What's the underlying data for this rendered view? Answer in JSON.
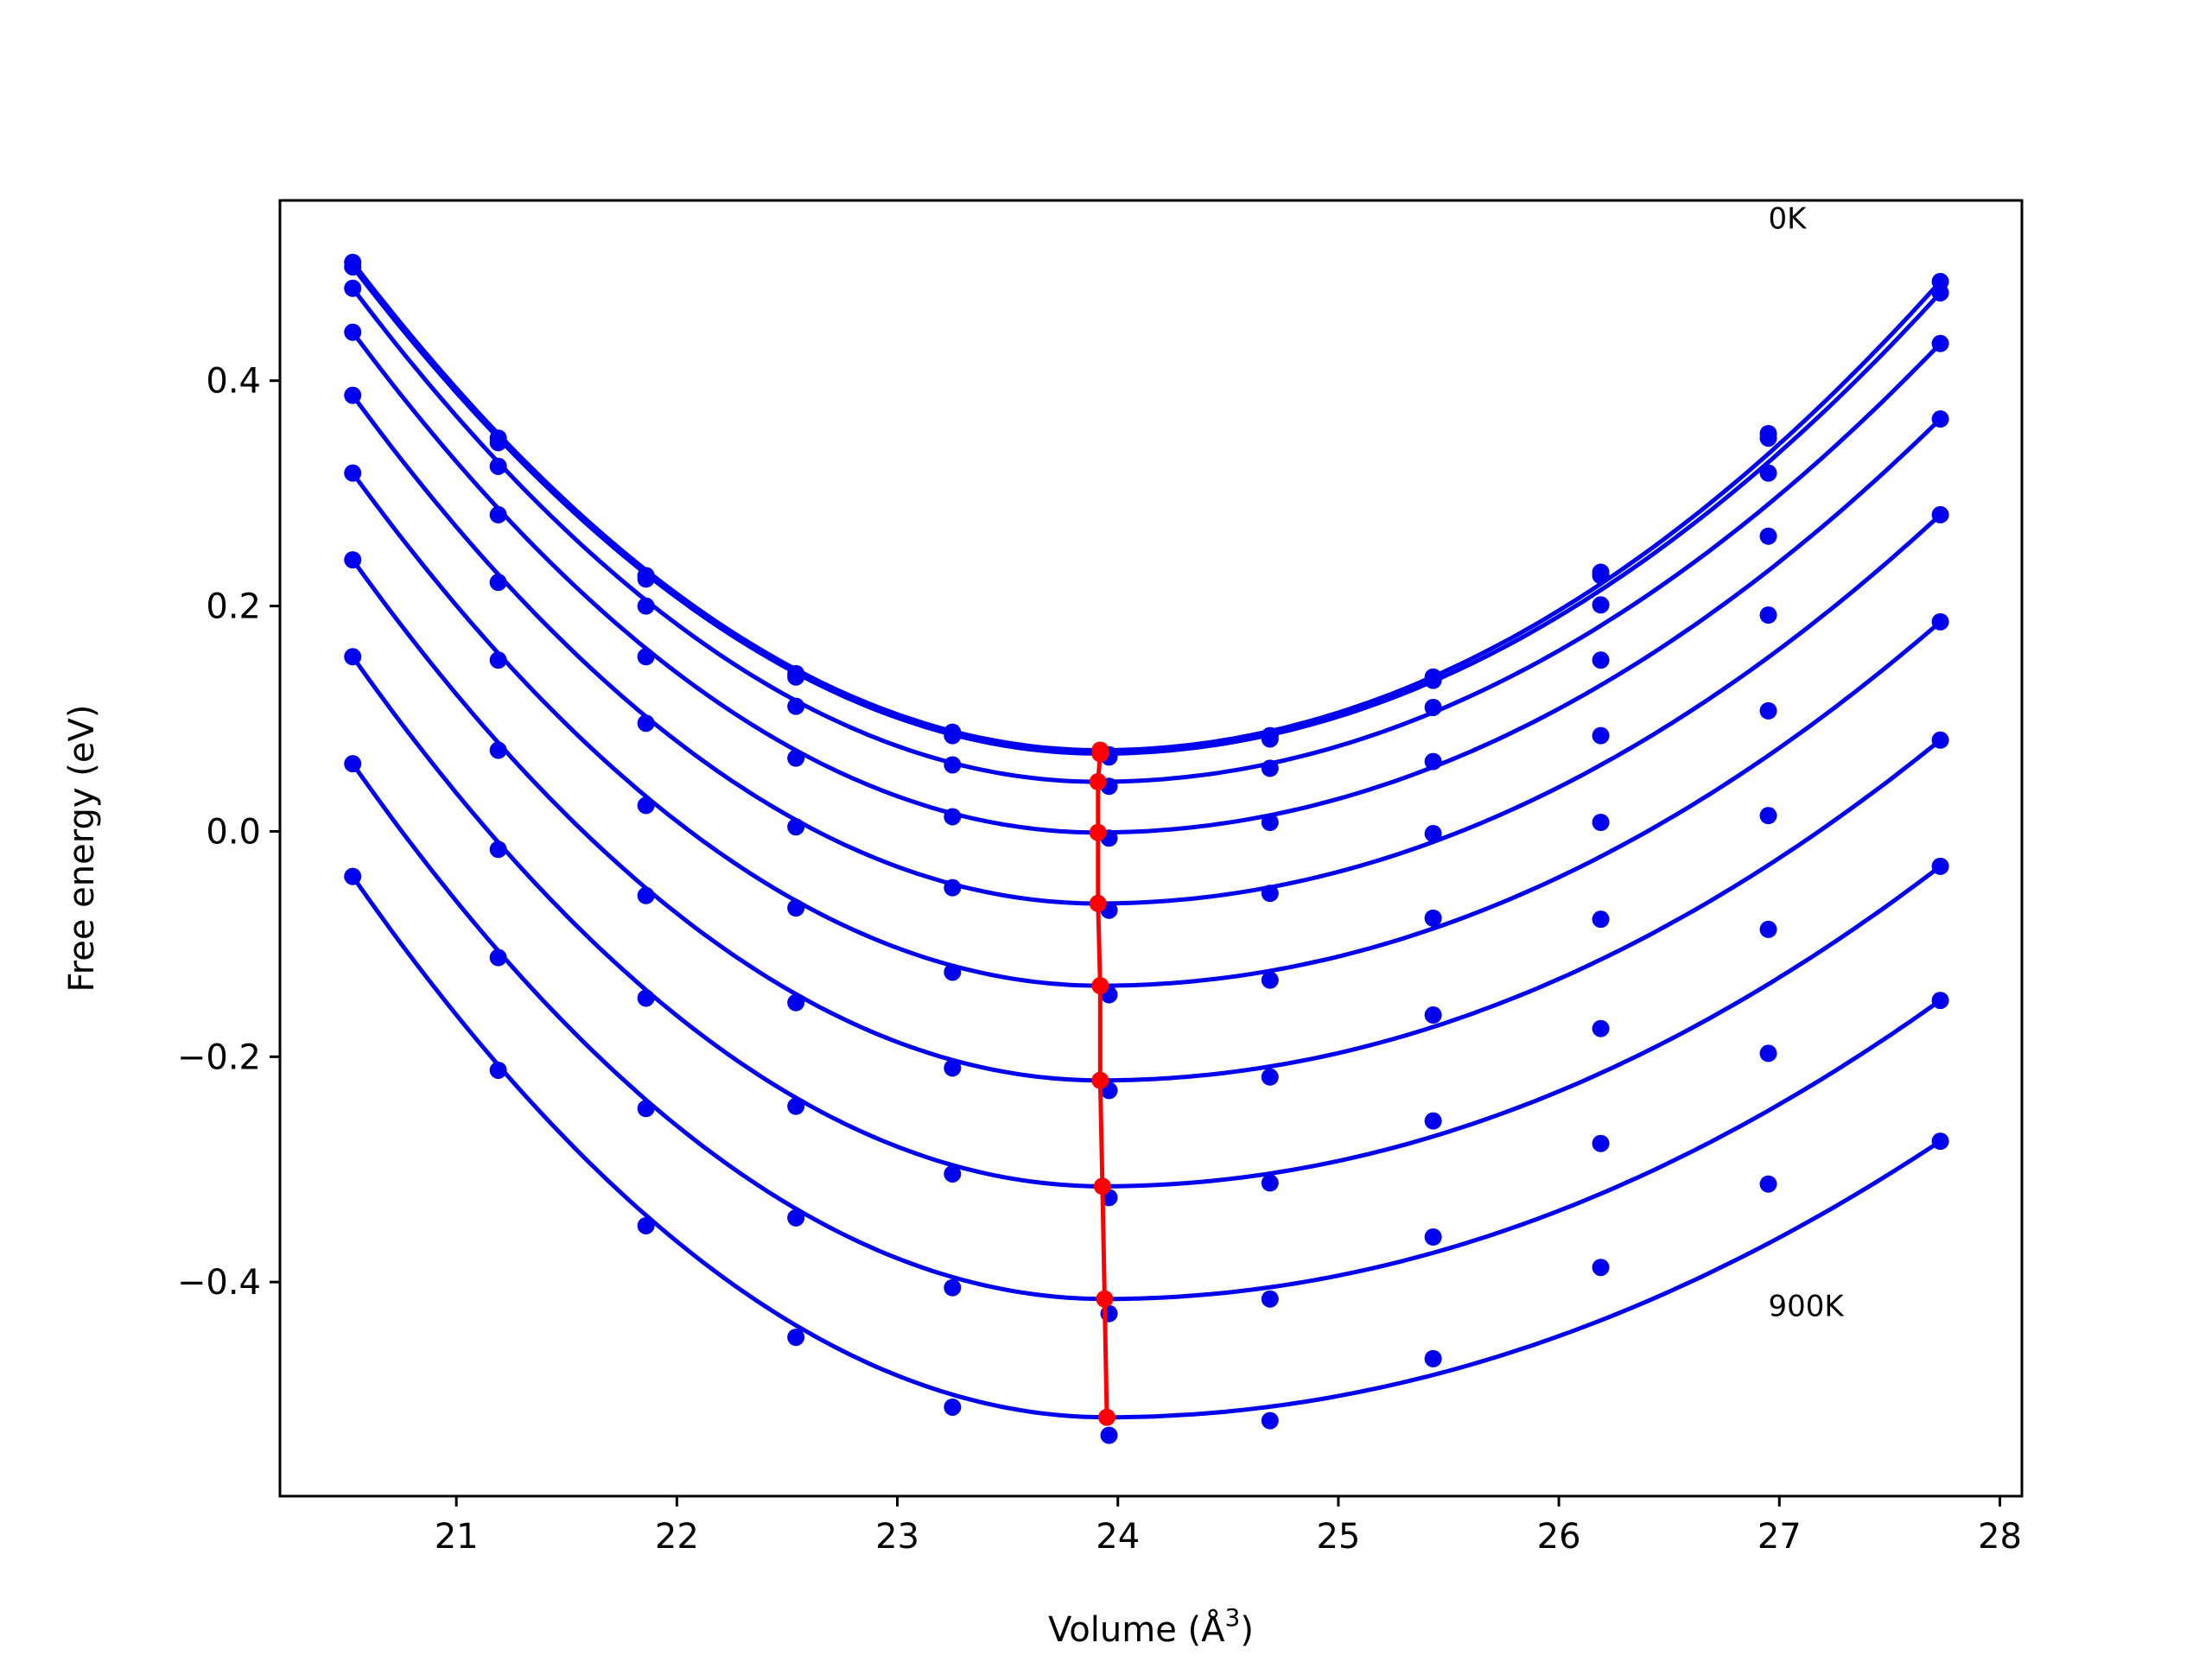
{
  "chart_data": {
    "type": "line",
    "title": "",
    "xlabel": "Volume (Å",
    "xlabel_superscript": "3",
    "xlabel_suffix": ")",
    "ylabel": "Free energy (eV)",
    "xlim": [
      20.2,
      28.1
    ],
    "ylim": [
      -0.59,
      0.56
    ],
    "x_ticks": [
      21,
      22,
      23,
      24,
      25,
      26,
      27,
      28
    ],
    "y_ticks": [
      -0.4,
      -0.2,
      0.0,
      0.2,
      0.4
    ],
    "y_tick_labels": [
      "−0.4",
      "−0.2",
      "0.0",
      "0.2",
      "0.4"
    ],
    "x_tick_labels": [
      "21",
      "22",
      "23",
      "24",
      "25",
      "26",
      "27",
      "28"
    ],
    "annotations": [
      {
        "text": "0K",
        "x": 26.95,
        "y": 0.535
      },
      {
        "text": "900K",
        "x": 26.95,
        "y": -0.43
      }
    ],
    "volumes": [
      20.53,
      21.19,
      21.86,
      22.54,
      23.25,
      23.96,
      24.69,
      25.43,
      26.19,
      26.95,
      27.73
    ],
    "series": [
      {
        "values": [
          0.505,
          0.349,
          0.227,
          0.14,
          0.088,
          0.068,
          0.085,
          0.137,
          0.23,
          0.353,
          0.488
        ],
        "min_v": 23.92,
        "min_f": 0.072
      },
      {
        "values": [
          0.501,
          0.345,
          0.224,
          0.137,
          0.085,
          0.066,
          0.082,
          0.134,
          0.227,
          0.349,
          0.478
        ],
        "min_v": 23.92,
        "min_f": 0.069
      },
      {
        "values": [
          0.482,
          0.324,
          0.2,
          0.111,
          0.059,
          0.04,
          0.056,
          0.11,
          0.201,
          0.318,
          0.433
        ],
        "min_v": 23.91,
        "min_f": 0.044
      },
      {
        "values": [
          0.443,
          0.281,
          0.155,
          0.065,
          0.013,
          -0.006,
          0.008,
          0.062,
          0.152,
          0.262,
          0.366
        ],
        "min_v": 23.91,
        "min_f": -0.001
      },
      {
        "values": [
          0.387,
          0.221,
          0.096,
          0.004,
          -0.05,
          -0.07,
          -0.055,
          -0.002,
          0.085,
          0.192,
          0.281
        ],
        "min_v": 23.91,
        "min_f": -0.064
      },
      {
        "values": [
          0.318,
          0.152,
          0.023,
          -0.068,
          -0.125,
          -0.145,
          -0.132,
          -0.077,
          0.008,
          0.107,
          0.186
        ],
        "min_v": 23.92,
        "min_f": -0.137
      },
      {
        "values": [
          0.241,
          0.072,
          -0.057,
          -0.152,
          -0.21,
          -0.23,
          -0.218,
          -0.163,
          -0.078,
          0.014,
          0.081
        ],
        "min_v": 23.92,
        "min_f": -0.221
      },
      {
        "values": [
          0.155,
          -0.016,
          -0.148,
          -0.244,
          -0.304,
          -0.325,
          -0.312,
          -0.257,
          -0.175,
          -0.087,
          -0.031
        ],
        "min_v": 23.93,
        "min_f": -0.315
      },
      {
        "values": [
          0.06,
          -0.112,
          -0.246,
          -0.343,
          -0.405,
          -0.428,
          -0.415,
          -0.36,
          -0.277,
          -0.197,
          -0.15
        ],
        "min_v": 23.94,
        "min_f": -0.415
      },
      {
        "values": [
          -0.04,
          -0.212,
          -0.35,
          -0.449,
          -0.511,
          -0.536,
          -0.523,
          -0.468,
          -0.387,
          -0.313,
          -0.275
        ],
        "min_v": 23.95,
        "min_f": -0.52
      }
    ],
    "colors": {
      "series": "#0000ee",
      "minima": "#ff0000",
      "frame": "#000000"
    },
    "grid": false,
    "legend": "none"
  }
}
